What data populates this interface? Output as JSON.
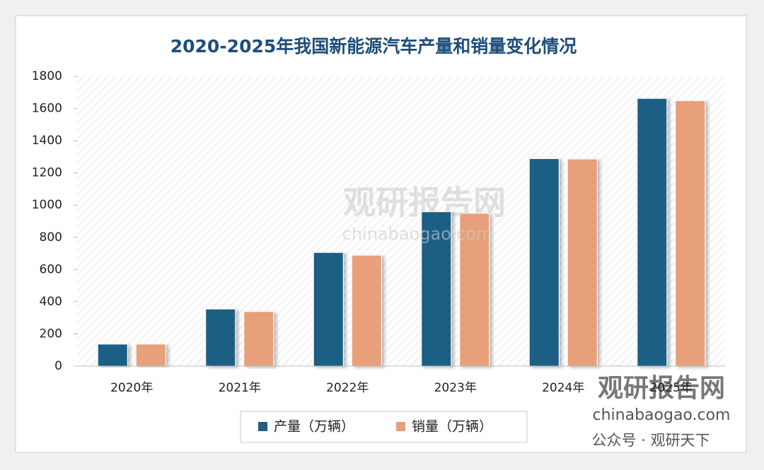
{
  "chart_data": {
    "type": "bar",
    "title": "2020-2025年我国新能源汽车产量和销量变化情况",
    "categories": [
      "2020年",
      "2021年",
      "2022年",
      "2023年",
      "2024年",
      "2025年"
    ],
    "series": [
      {
        "name": "产量（万辆）",
        "color": "#1f5f84",
        "values": [
          136.6,
          354.5,
          705.8,
          958.7,
          1288.8,
          1662.6
        ]
      },
      {
        "name": "销量（万辆）",
        "color": "#e8a07a",
        "values": [
          136.7,
          339,
          688.7,
          949.5,
          1286.6,
          1649
        ]
      }
    ],
    "ylim": [
      0,
      1800
    ],
    "yticks": [
      0,
      200,
      400,
      600,
      800,
      1000,
      1200,
      1400,
      1600,
      1800
    ],
    "legend": "bottom",
    "watermark": {
      "brand": "观研报告网",
      "site": "chinabaogao.com",
      "account": "公众号 · 观研天下"
    }
  }
}
